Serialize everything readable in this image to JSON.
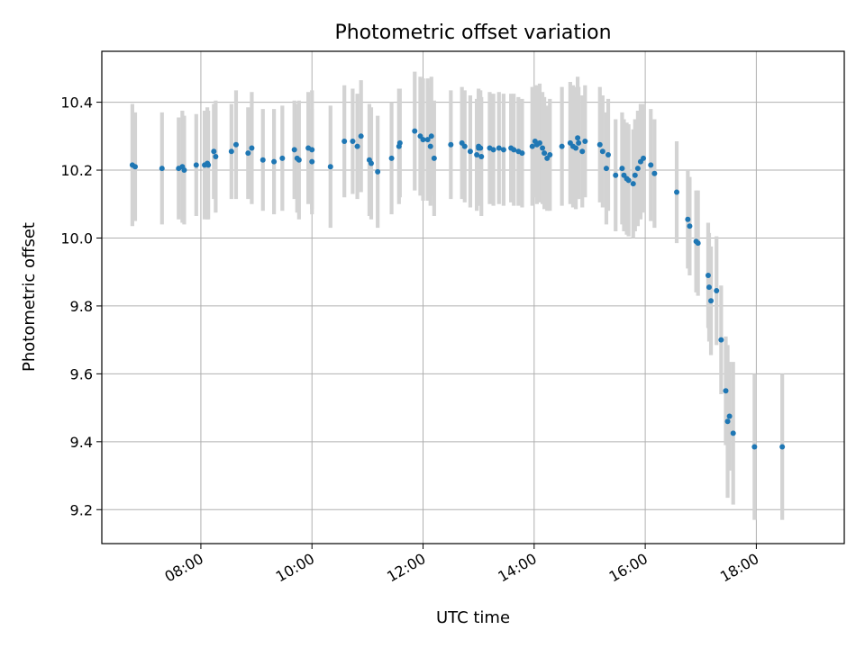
{
  "chart_data": {
    "type": "scatter",
    "title": "Photometric offset variation",
    "xlabel": "UTC time",
    "ylabel": "Photometric offset",
    "xlim": [
      "06:13",
      "19:35"
    ],
    "ylim": [
      9.1,
      10.55
    ],
    "x_ticks": [
      "08:00",
      "10:00",
      "12:00",
      "14:00",
      "16:00",
      "18:00"
    ],
    "y_ticks": [
      9.2,
      9.4,
      9.6,
      9.8,
      10.0,
      10.2,
      10.4
    ],
    "grid": true,
    "colors": {
      "points": "#1f77b4",
      "errorbars": "#d3d3d3"
    },
    "series": [
      {
        "x": [
          "06:46",
          "06:49",
          "07:18",
          "07:36",
          "07:40",
          "07:42",
          "07:55",
          "08:04",
          "08:07",
          "08:08",
          "08:14",
          "08:16",
          "08:33",
          "08:38",
          "08:51",
          "08:55",
          "09:07",
          "09:19",
          "09:28",
          "09:41",
          "09:44",
          "09:46",
          "09:56",
          "10:00",
          "10:00",
          "10:20",
          "10:35",
          "10:44",
          "10:49",
          "10:53",
          "11:02",
          "11:04",
          "11:11",
          "11:26",
          "11:34",
          "11:35",
          "11:51",
          "11:57",
          "12:00",
          "12:05",
          "12:08",
          "12:09",
          "12:12",
          "12:30",
          "12:42",
          "12:45",
          "12:51",
          "12:58",
          "13:00",
          "13:00",
          "13:02",
          "13:03",
          "13:12",
          "13:16",
          "13:22",
          "13:27",
          "13:35",
          "13:38",
          "13:43",
          "13:47",
          "13:58",
          "14:01",
          "14:03",
          "14:06",
          "14:09",
          "14:11",
          "14:14",
          "14:17",
          "14:30",
          "14:39",
          "14:42",
          "14:45",
          "14:47",
          "14:48",
          "14:52",
          "14:55",
          "15:11",
          "15:14",
          "15:18",
          "15:20",
          "15:28",
          "15:35",
          "15:37",
          "15:40",
          "15:42",
          "15:47",
          "15:49",
          "15:52",
          "15:55",
          "15:58",
          "16:06",
          "16:10",
          "16:34",
          "16:46",
          "16:48",
          "16:55",
          "16:57",
          "17:08",
          "17:09",
          "17:11",
          "17:17",
          "17:22",
          "17:27",
          "17:29",
          "17:31",
          "17:35",
          "17:58",
          "18:28"
        ],
        "y": [
          10.215,
          10.21,
          10.205,
          10.205,
          10.21,
          10.2,
          10.215,
          10.215,
          10.22,
          10.215,
          10.255,
          10.24,
          10.255,
          10.275,
          10.25,
          10.265,
          10.23,
          10.225,
          10.235,
          10.26,
          10.235,
          10.23,
          10.265,
          10.225,
          10.26,
          10.21,
          10.285,
          10.285,
          10.27,
          10.3,
          10.23,
          10.22,
          10.195,
          10.235,
          10.27,
          10.28,
          10.315,
          10.3,
          10.29,
          10.29,
          10.27,
          10.3,
          10.235,
          10.275,
          10.28,
          10.27,
          10.255,
          10.245,
          10.27,
          10.265,
          10.265,
          10.24,
          10.265,
          10.26,
          10.265,
          10.26,
          10.265,
          10.26,
          10.255,
          10.25,
          10.27,
          10.285,
          10.275,
          10.28,
          10.265,
          10.25,
          10.235,
          10.245,
          10.27,
          10.28,
          10.27,
          10.265,
          10.295,
          10.28,
          10.255,
          10.285,
          10.275,
          10.255,
          10.205,
          10.245,
          10.185,
          10.205,
          10.185,
          10.175,
          10.17,
          10.16,
          10.185,
          10.205,
          10.225,
          10.235,
          10.215,
          10.19,
          10.135,
          10.055,
          10.035,
          9.99,
          9.985,
          9.89,
          9.855,
          9.815,
          9.845,
          9.7,
          9.55,
          9.46,
          9.475,
          9.425,
          9.385,
          9.385
        ],
        "yerr": [
          0.18,
          0.16,
          0.165,
          0.15,
          0.165,
          0.16,
          0.15,
          0.16,
          0.165,
          0.16,
          0.14,
          0.165,
          0.14,
          0.16,
          0.135,
          0.165,
          0.15,
          0.155,
          0.155,
          0.145,
          0.16,
          0.175,
          0.165,
          0.155,
          0.175,
          0.18,
          0.165,
          0.155,
          0.155,
          0.165,
          0.165,
          0.165,
          0.165,
          0.165,
          0.17,
          0.16,
          0.175,
          0.175,
          0.18,
          0.18,
          0.175,
          0.175,
          0.17,
          0.16,
          0.165,
          0.165,
          0.165,
          0.165,
          0.17,
          0.17,
          0.17,
          0.175,
          0.165,
          0.165,
          0.165,
          0.165,
          0.16,
          0.165,
          0.16,
          0.16,
          0.175,
          0.165,
          0.175,
          0.175,
          0.165,
          0.165,
          0.155,
          0.165,
          0.175,
          0.18,
          0.18,
          0.18,
          0.18,
          0.165,
          0.165,
          0.165,
          0.17,
          0.165,
          0.165,
          0.165,
          0.165,
          0.165,
          0.165,
          0.165,
          0.165,
          0.16,
          0.165,
          0.17,
          0.17,
          0.16,
          0.165,
          0.16,
          0.15,
          0.145,
          0.145,
          0.15,
          0.155,
          0.155,
          0.16,
          0.16,
          0.16,
          0.16,
          0.16,
          0.225,
          0.16,
          0.21,
          0.215,
          0.215
        ]
      }
    ]
  }
}
